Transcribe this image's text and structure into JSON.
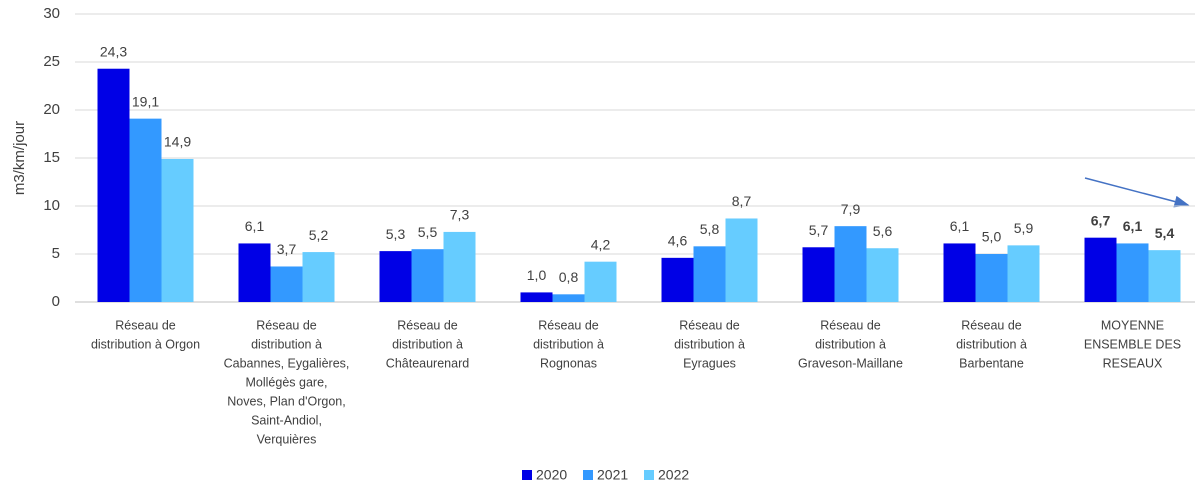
{
  "chart_data": {
    "type": "bar",
    "y_label": "m3/km/jour",
    "categories": [
      [
        "Réseau de",
        "distribution à Orgon"
      ],
      [
        "Réseau de",
        "distribution à",
        "Cabannes, Eygalières,",
        "Mollégès gare,",
        "Noves, Plan d'Orgon,",
        "Saint-Andiol,",
        "Verquières"
      ],
      [
        "Réseau de",
        "distribution à",
        "Châteaurenard"
      ],
      [
        "Réseau de",
        "distribution à",
        "Rognonas"
      ],
      [
        "Réseau de",
        "distribution à",
        "Eyragues"
      ],
      [
        "Réseau de",
        "distribution à",
        "Graveson-Maillane"
      ],
      [
        "Réseau de",
        "distribution à",
        "Barbentane"
      ],
      [
        "MOYENNE",
        "ENSEMBLE DES",
        "RESEAUX"
      ]
    ],
    "series": [
      {
        "name": "2020",
        "color": "#0000e6",
        "values": [
          24.3,
          6.1,
          5.3,
          1.0,
          4.6,
          5.7,
          6.1,
          6.7
        ],
        "value_labels": [
          "24,3",
          "6,1",
          "5,3",
          "1,0",
          "4,6",
          "5,7",
          "6,1",
          "6,7"
        ]
      },
      {
        "name": "2021",
        "color": "#3399ff",
        "values": [
          19.1,
          3.7,
          5.5,
          0.8,
          5.8,
          7.9,
          5.0,
          6.1
        ],
        "value_labels": [
          "19,1",
          "3,7",
          "5,5",
          "0,8",
          "5,8",
          "7,9",
          "5,0",
          "6,1"
        ]
      },
      {
        "name": "2022",
        "color": "#66ccff",
        "values": [
          14.9,
          5.2,
          7.3,
          4.2,
          8.7,
          5.6,
          5.9,
          5.4
        ],
        "value_labels": [
          "14,9",
          "5,2",
          "7,3",
          "4,2",
          "8,7",
          "5,6",
          "5,9",
          "5,4"
        ]
      }
    ],
    "ylim": [
      0,
      30
    ],
    "yticks": [
      0,
      5,
      10,
      15,
      20,
      25,
      30
    ],
    "grid": true,
    "legend": "bottom",
    "emphasized_category": 7
  }
}
